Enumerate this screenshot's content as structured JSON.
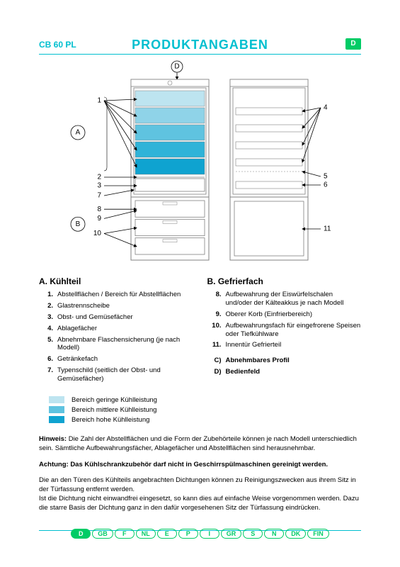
{
  "header": {
    "model": "CB 60 PL",
    "title": "PRODUKTANGABEN",
    "badge": "D"
  },
  "diagram": {
    "callouts_left": [
      "1",
      "2",
      "3",
      "7",
      "8",
      "9",
      "10"
    ],
    "callouts_right": [
      "4",
      "5",
      "6",
      "11"
    ],
    "circle_labels": {
      "A": "A",
      "B": "B",
      "D": "D"
    },
    "shelf_colors": [
      "#bde4f0",
      "#8fd3e8",
      "#5fc3e0",
      "#2fb3d8",
      "#0fa3d0"
    ],
    "outline_color": "#808080",
    "arrow_color": "#000000"
  },
  "sections": {
    "A": {
      "head": "A.   Kühlteil",
      "items": [
        {
          "n": "1.",
          "t": "Abstellflächen / Bereich für Abstellflächen"
        },
        {
          "n": "2.",
          "t": "Glastrennscheibe"
        },
        {
          "n": "3.",
          "t": "Obst- und Gemüsefächer"
        },
        {
          "n": "4.",
          "t": "Ablagefächer"
        },
        {
          "n": "5.",
          "t": "Abnehmbare Flaschensicherung (je nach Modell)"
        },
        {
          "n": "6.",
          "t": "Getränkefach"
        },
        {
          "n": "7.",
          "t": "Typenschild (seitlich der Obst- und Gemüsefächer)"
        }
      ]
    },
    "B": {
      "head": "B.   Gefrierfach",
      "items": [
        {
          "n": "8.",
          "t": "Aufbewahrung der Eiswürfelschalen und/oder der Kälteakkus je nach Modell"
        },
        {
          "n": "9.",
          "t": "Oberer Korb (Einfrierbereich)"
        },
        {
          "n": "10.",
          "t": "Aufbewahrungsfach für eingefrorene Speisen oder Tiefkühlware"
        },
        {
          "n": "11.",
          "t": "Innentür Gefrierteil"
        }
      ],
      "extra": [
        {
          "n": "C)",
          "t": "Abnehmbares Profil"
        },
        {
          "n": "D)",
          "t": "Bedienfeld"
        }
      ]
    }
  },
  "legend": {
    "rows": [
      {
        "color": "#bde4f0",
        "label": "Bereich geringe Kühlleistung"
      },
      {
        "color": "#5fc3e0",
        "label": "Bereich mittlere Kühlleistung"
      },
      {
        "color": "#0fa3d0",
        "label": "Bereich hohe Kühlleistung"
      }
    ]
  },
  "notes": {
    "hinweis_label": "Hinweis:",
    "hinweis": " Die Zahl der Abstellflächen und die Form der Zubehörteile können je nach Modell unterschiedlich sein. Sämtliche Aufbewahrungsfächer, Ablagefächer und Abstellflächen sind herausnehmbar.",
    "achtung": "Achtung: Das Kühlschrankzubehör darf nicht in Geschirrspülmaschinen gereinigt werden.",
    "para": "Die an den Türen des Kühlteils angebrachten Dichtungen können zu Reinigungszwecken aus ihrem Sitz in der Türfassung entfernt werden.\nIst die Dichtung nicht einwandfrei eingesetzt, so kann dies auf einfache Weise vorgenommen werden. Dazu die starre Basis der Dichtung ganz in den dafür vorgesehenen Sitz der Türfassung eindrücken."
  },
  "langs": [
    "D",
    "GB",
    "F",
    "NL",
    "E",
    "P",
    "I",
    "GR",
    "S",
    "N",
    "DK",
    "FIN"
  ],
  "active_lang": "D"
}
